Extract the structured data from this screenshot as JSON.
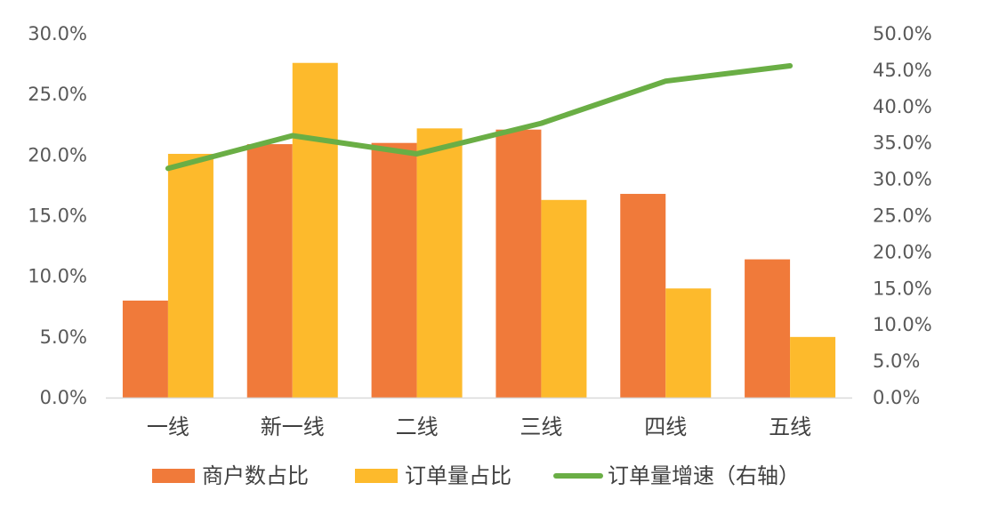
{
  "chart_data": {
    "type": "bar",
    "title": "",
    "xlabel": "",
    "ylabel": "",
    "categories": [
      "一线",
      "新一线",
      "二线",
      "三线",
      "四线",
      "五线"
    ],
    "series": [
      {
        "name": "商户数占比",
        "type": "bar",
        "axis": "left",
        "color": "#F07A3A",
        "values": [
          8.0,
          20.9,
          21.0,
          22.1,
          16.8,
          11.4
        ]
      },
      {
        "name": "订单量占比",
        "type": "bar",
        "axis": "left",
        "color": "#FDBA2C",
        "values": [
          20.1,
          27.6,
          22.2,
          16.3,
          9.0,
          5.0
        ]
      },
      {
        "name": "订单量增速（右轴）",
        "type": "line",
        "axis": "right",
        "color": "#6AAE45",
        "values": [
          31.5,
          36.0,
          33.5,
          37.7,
          43.5,
          45.6
        ]
      }
    ],
    "ylim": [
      0,
      30
    ],
    "y2lim": [
      0,
      50
    ],
    "yticks": [
      "0.0%",
      "5.0%",
      "10.0%",
      "15.0%",
      "20.0%",
      "25.0%",
      "30.0%"
    ],
    "y2ticks": [
      "0.0%",
      "5.0%",
      "10.0%",
      "15.0%",
      "20.0%",
      "25.0%",
      "30.0%",
      "35.0%",
      "40.0%",
      "45.0%",
      "50.0%"
    ],
    "grid": false,
    "legend_position": "bottom"
  }
}
